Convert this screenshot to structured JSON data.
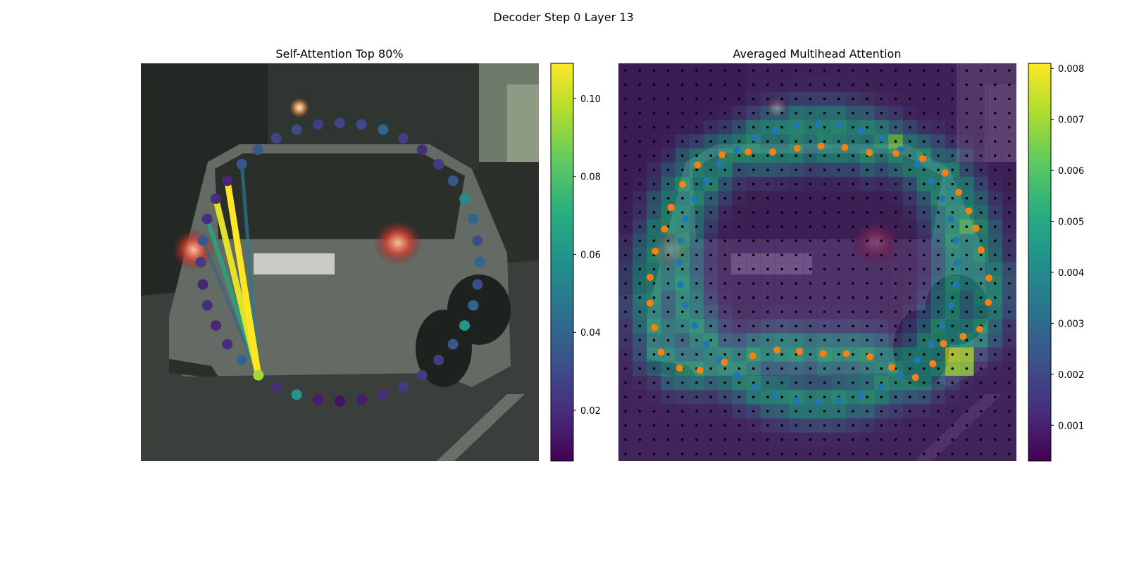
{
  "figure": {
    "title": "Decoder Step 0 Layer 13"
  },
  "chart_data": [
    {
      "type": "scatter",
      "title": "Self-Attention Top 80%",
      "colormap": "viridis",
      "colorbar": {
        "min": 0.007,
        "max": 0.109,
        "ticks": [
          "0.02",
          "0.04",
          "0.06",
          "0.08",
          "0.10"
        ]
      },
      "query_point": {
        "x": 359,
        "y": 521,
        "value": 0.095
      },
      "attention_links": [
        {
          "to_x": 316,
          "to_y": 251,
          "value": 0.109
        },
        {
          "to_x": 300,
          "to_y": 276,
          "value": 0.105
        },
        {
          "to_x": 288,
          "to_y": 304,
          "value": 0.068
        },
        {
          "to_x": 336,
          "to_y": 228,
          "value": 0.05
        },
        {
          "to_x": 282,
          "to_y": 334,
          "value": 0.04
        }
      ],
      "points": [
        {
          "x": 336,
          "y": 228,
          "value": 0.035
        },
        {
          "x": 358,
          "y": 208,
          "value": 0.035
        },
        {
          "x": 384,
          "y": 192,
          "value": 0.028
        },
        {
          "x": 412,
          "y": 180,
          "value": 0.03
        },
        {
          "x": 442,
          "y": 173,
          "value": 0.025
        },
        {
          "x": 472,
          "y": 171,
          "value": 0.028
        },
        {
          "x": 502,
          "y": 173,
          "value": 0.03
        },
        {
          "x": 532,
          "y": 180,
          "value": 0.04
        },
        {
          "x": 560,
          "y": 192,
          "value": 0.025
        },
        {
          "x": 586,
          "y": 208,
          "value": 0.02
        },
        {
          "x": 609,
          "y": 228,
          "value": 0.025
        },
        {
          "x": 629,
          "y": 251,
          "value": 0.035
        },
        {
          "x": 645,
          "y": 276,
          "value": 0.055
        },
        {
          "x": 657,
          "y": 304,
          "value": 0.04
        },
        {
          "x": 663,
          "y": 334,
          "value": 0.03
        },
        {
          "x": 666,
          "y": 364,
          "value": 0.04
        },
        {
          "x": 663,
          "y": 395,
          "value": 0.03
        },
        {
          "x": 657,
          "y": 424,
          "value": 0.04
        },
        {
          "x": 645,
          "y": 452,
          "value": 0.06
        },
        {
          "x": 629,
          "y": 478,
          "value": 0.035
        },
        {
          "x": 609,
          "y": 500,
          "value": 0.025
        },
        {
          "x": 586,
          "y": 521,
          "value": 0.025
        },
        {
          "x": 560,
          "y": 537,
          "value": 0.025
        },
        {
          "x": 532,
          "y": 548,
          "value": 0.02
        },
        {
          "x": 502,
          "y": 555,
          "value": 0.015
        },
        {
          "x": 472,
          "y": 557,
          "value": 0.012
        },
        {
          "x": 442,
          "y": 555,
          "value": 0.015
        },
        {
          "x": 412,
          "y": 548,
          "value": 0.06
        },
        {
          "x": 384,
          "y": 537,
          "value": 0.02
        },
        {
          "x": 336,
          "y": 500,
          "value": 0.04
        },
        {
          "x": 316,
          "y": 478,
          "value": 0.02
        },
        {
          "x": 300,
          "y": 452,
          "value": 0.018
        },
        {
          "x": 288,
          "y": 424,
          "value": 0.02
        },
        {
          "x": 282,
          "y": 395,
          "value": 0.018
        },
        {
          "x": 279,
          "y": 364,
          "value": 0.025
        },
        {
          "x": 282,
          "y": 334,
          "value": 0.035
        },
        {
          "x": 288,
          "y": 304,
          "value": 0.02
        },
        {
          "x": 300,
          "y": 276,
          "value": 0.02
        },
        {
          "x": 316,
          "y": 251,
          "value": 0.018
        }
      ]
    },
    {
      "type": "heatmap",
      "title": "Averaged Multihead Attention",
      "colormap": "viridis",
      "grid_size": 28,
      "colorbar": {
        "min": 0.0003,
        "max": 0.0081,
        "ticks": [
          "0.001",
          "0.002",
          "0.003",
          "0.004",
          "0.005",
          "0.006",
          "0.007",
          "0.008"
        ]
      },
      "series": [
        {
          "name": "",
          "color": "#1f77b4",
          "points": [
            [
              1022,
              208
            ],
            [
              1048,
              192
            ],
            [
              1076,
              181
            ],
            [
              1105,
              174
            ],
            [
              1135,
              172
            ],
            [
              1165,
              174
            ],
            [
              1195,
              181
            ],
            [
              1223,
              192
            ],
            [
              1249,
              208
            ],
            [
              1273,
              228
            ],
            [
              1292,
              251
            ],
            [
              1307,
              276
            ],
            [
              1319,
              304
            ],
            [
              1326,
              334
            ],
            [
              1328,
              364
            ],
            [
              1326,
              395
            ],
            [
              1319,
              424
            ],
            [
              1307,
              452
            ],
            [
              1292,
              478
            ],
            [
              1273,
              500
            ],
            [
              1249,
              521
            ],
            [
              1223,
              537
            ],
            [
              1195,
              549
            ],
            [
              1165,
              556
            ],
            [
              1135,
              558
            ],
            [
              1105,
              556
            ],
            [
              1076,
              549
            ],
            [
              1048,
              537
            ],
            [
              1022,
              521
            ],
            [
              998,
              500
            ],
            [
              980,
              478
            ],
            [
              963,
              452
            ],
            [
              951,
              424
            ],
            [
              944,
              395
            ],
            [
              942,
              364
            ],
            [
              944,
              334
            ],
            [
              951,
              304
            ],
            [
              963,
              276
            ],
            [
              980,
              251
            ],
            [
              998,
              228
            ]
          ]
        },
        {
          "name": "",
          "color": "#ff7f0e",
          "points": [
            [
              1002,
              215
            ],
            [
              1038,
              211
            ],
            [
              1072,
              211
            ],
            [
              1106,
              206
            ],
            [
              1139,
              203
            ],
            [
              1172,
              205
            ],
            [
              1206,
              212
            ],
            [
              1243,
              213
            ],
            [
              1280,
              220
            ],
            [
              1311,
              240
            ],
            [
              1330,
              267
            ],
            [
              1344,
              293
            ],
            [
              1354,
              317
            ],
            [
              1361,
              347
            ],
            [
              1372,
              386
            ],
            [
              1371,
              420
            ],
            [
              1359,
              457
            ],
            [
              1336,
              467
            ],
            [
              1309,
              477
            ],
            [
              1294,
              505
            ],
            [
              1270,
              524
            ],
            [
              1237,
              510
            ],
            [
              1207,
              495
            ],
            [
              1174,
              491
            ],
            [
              1142,
              491
            ],
            [
              1109,
              488
            ],
            [
              1078,
              486
            ],
            [
              1044,
              494
            ],
            [
              1005,
              503
            ],
            [
              971,
              514
            ],
            [
              943,
              511
            ],
            [
              917,
              489
            ],
            [
              908,
              455
            ],
            [
              902,
              421
            ],
            [
              902,
              385
            ],
            [
              909,
              349
            ],
            [
              922,
              318
            ],
            [
              931,
              288
            ],
            [
              947,
              256
            ],
            [
              968,
              229
            ]
          ]
        }
      ],
      "hot_cells": [
        {
          "row": 5,
          "col": 19,
          "value": 0.0065
        },
        {
          "row": 11,
          "col": 24,
          "value": 0.006
        },
        {
          "row": 20,
          "col": 23,
          "value": 0.0075
        },
        {
          "row": 20,
          "col": 24,
          "value": 0.0072
        },
        {
          "row": 21,
          "col": 23,
          "value": 0.007
        },
        {
          "row": 21,
          "col": 24,
          "value": 0.0068
        }
      ]
    }
  ]
}
